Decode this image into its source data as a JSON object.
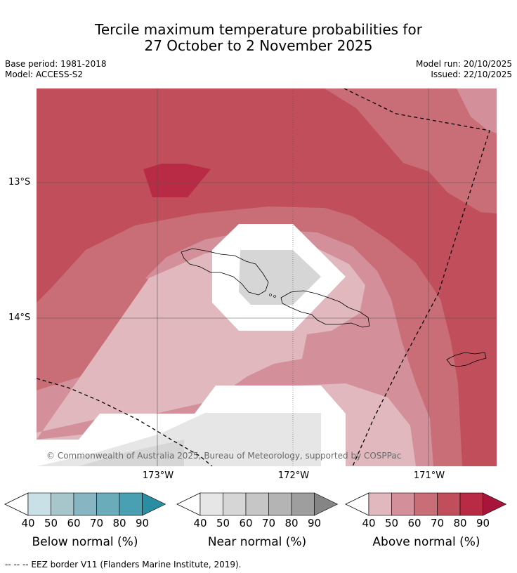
{
  "title_line1": "Tercile maximum temperature probabilities for",
  "title_line2": "27 October to 2 November 2025",
  "base_period": "Base period: 1981-2018",
  "model": "Model: ACCESS-S2",
  "model_run": "Model run: 20/10/2025",
  "issued": "Issued: 22/10/2025",
  "lat_labels": [
    "13°S",
    "14°S"
  ],
  "lon_labels": [
    "173°W",
    "172°W",
    "171°W"
  ],
  "copyright": "© Commonwealth of Australia 2025, Bureau of Meteorology, supported by COSPPac",
  "legends": [
    {
      "title": "Below normal (%)",
      "colors": [
        "#c8e0e6",
        "#a6c6cc",
        "#87b6c2",
        "#6bacbb",
        "#48a0b2",
        "#2a8ea3"
      ]
    },
    {
      "title": "Near normal (%)",
      "colors": [
        "#e6e6e6",
        "#d6d6d6",
        "#c6c6c6",
        "#b4b4b4",
        "#9e9e9e",
        "#858585"
      ]
    },
    {
      "title": "Above normal (%)",
      "colors": [
        "#e0b8bd",
        "#d4909a",
        "#c96d76",
        "#c04f5b",
        "#b92a44",
        "#a8153a"
      ]
    }
  ],
  "legend_ticks": [
    "40",
    "50",
    "60",
    "70",
    "80",
    "90"
  ],
  "footnote": "--  --  -- EEZ border V11 (Flanders Marine Institute, 2019)."
}
